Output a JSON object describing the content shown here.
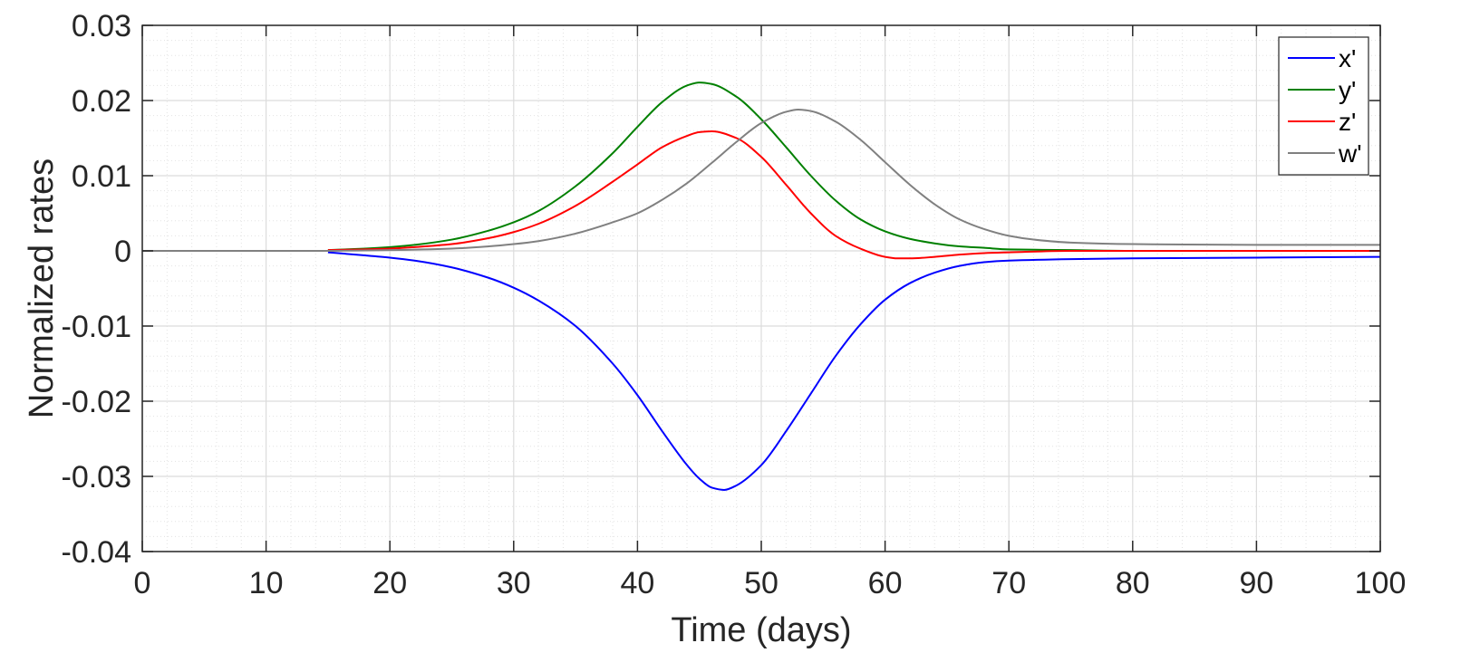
{
  "chart_data": {
    "type": "line",
    "xlabel": "Time (days)",
    "ylabel": "Normalized rates",
    "xlim": [
      0,
      100
    ],
    "ylim": [
      -0.04,
      0.03
    ],
    "x_ticks": [
      0,
      10,
      20,
      30,
      40,
      50,
      60,
      70,
      80,
      90,
      100
    ],
    "x_tick_labels": [
      "0",
      "10",
      "20",
      "30",
      "40",
      "50",
      "60",
      "70",
      "80",
      "90",
      "100"
    ],
    "y_ticks": [
      -0.04,
      -0.03,
      -0.02,
      -0.01,
      0,
      0.01,
      0.02,
      0.03
    ],
    "y_tick_labels": [
      "-0.04",
      "-0.03",
      "-0.02",
      "-0.01",
      "0",
      "0.01",
      "0.02",
      "0.03"
    ],
    "grid": true,
    "minor_grid": true,
    "legend_position": "top-right",
    "series": [
      {
        "name": "x'",
        "color": "#0000ff",
        "points": [
          [
            15,
            -0.0002
          ],
          [
            18,
            -0.0006
          ],
          [
            20,
            -0.0009
          ],
          [
            22,
            -0.0013
          ],
          [
            25,
            -0.0022
          ],
          [
            28,
            -0.0036
          ],
          [
            30,
            -0.0049
          ],
          [
            32,
            -0.0066
          ],
          [
            35,
            -0.01
          ],
          [
            38,
            -0.015
          ],
          [
            40,
            -0.0192
          ],
          [
            42,
            -0.024
          ],
          [
            44,
            -0.0285
          ],
          [
            45,
            -0.0303
          ],
          [
            46,
            -0.0315
          ],
          [
            47,
            -0.0318
          ],
          [
            48,
            -0.0312
          ],
          [
            50,
            -0.0285
          ],
          [
            52,
            -0.024
          ],
          [
            54,
            -0.019
          ],
          [
            56,
            -0.014
          ],
          [
            58,
            -0.0098
          ],
          [
            60,
            -0.0065
          ],
          [
            62,
            -0.0043
          ],
          [
            64,
            -0.0029
          ],
          [
            66,
            -0.002
          ],
          [
            68,
            -0.0015
          ],
          [
            70,
            -0.0013
          ],
          [
            75,
            -0.0011
          ],
          [
            80,
            -0.001
          ],
          [
            90,
            -0.0009
          ],
          [
            100,
            -0.0008
          ]
        ]
      },
      {
        "name": "y'",
        "color": "#008000",
        "points": [
          [
            15,
            0.0001
          ],
          [
            18,
            0.0003
          ],
          [
            20,
            0.0005
          ],
          [
            22,
            0.0008
          ],
          [
            25,
            0.0015
          ],
          [
            28,
            0.0027
          ],
          [
            30,
            0.0038
          ],
          [
            32,
            0.0053
          ],
          [
            35,
            0.0086
          ],
          [
            38,
            0.013
          ],
          [
            40,
            0.0165
          ],
          [
            42,
            0.0198
          ],
          [
            44,
            0.022
          ],
          [
            45,
            0.0224
          ],
          [
            46,
            0.0222
          ],
          [
            48,
            0.0205
          ],
          [
            50,
            0.0175
          ],
          [
            52,
            0.0138
          ],
          [
            54,
            0.01
          ],
          [
            56,
            0.0067
          ],
          [
            58,
            0.0042
          ],
          [
            60,
            0.0026
          ],
          [
            62,
            0.0016
          ],
          [
            64,
            0.001
          ],
          [
            66,
            0.0006
          ],
          [
            68,
            0.0004
          ],
          [
            70,
            0.0002
          ],
          [
            75,
            0.0001
          ],
          [
            80,
            0.0
          ],
          [
            100,
            0.0
          ]
        ]
      },
      {
        "name": "z'",
        "color": "#ff0000",
        "points": [
          [
            15,
            0.0001
          ],
          [
            18,
            0.0002
          ],
          [
            20,
            0.0003
          ],
          [
            22,
            0.0005
          ],
          [
            25,
            0.0009
          ],
          [
            28,
            0.0017
          ],
          [
            30,
            0.0025
          ],
          [
            32,
            0.0036
          ],
          [
            35,
            0.006
          ],
          [
            38,
            0.0092
          ],
          [
            40,
            0.0115
          ],
          [
            42,
            0.0138
          ],
          [
            44,
            0.0153
          ],
          [
            45,
            0.0158
          ],
          [
            46,
            0.0159
          ],
          [
            48,
            0.015
          ],
          [
            50,
            0.0125
          ],
          [
            52,
            0.0088
          ],
          [
            54,
            0.005
          ],
          [
            56,
            0.002
          ],
          [
            58,
            0.0003
          ],
          [
            60,
            -0.0008
          ],
          [
            61,
            -0.001
          ],
          [
            62,
            -0.001
          ],
          [
            64,
            -0.0008
          ],
          [
            66,
            -0.0005
          ],
          [
            68,
            -0.0003
          ],
          [
            70,
            -0.0002
          ],
          [
            75,
            0.0
          ],
          [
            100,
            0.0
          ]
        ]
      },
      {
        "name": "w'",
        "color": "#808080",
        "points": [
          [
            15,
            0.0
          ],
          [
            20,
            0.0001
          ],
          [
            25,
            0.0003
          ],
          [
            28,
            0.0006
          ],
          [
            30,
            0.0009
          ],
          [
            32,
            0.0013
          ],
          [
            35,
            0.0023
          ],
          [
            38,
            0.0038
          ],
          [
            40,
            0.005
          ],
          [
            42,
            0.0068
          ],
          [
            44,
            0.009
          ],
          [
            46,
            0.0117
          ],
          [
            48,
            0.0145
          ],
          [
            50,
            0.017
          ],
          [
            52,
            0.0185
          ],
          [
            53,
            0.0188
          ],
          [
            54,
            0.0186
          ],
          [
            56,
            0.0172
          ],
          [
            58,
            0.0148
          ],
          [
            60,
            0.0118
          ],
          [
            62,
            0.0088
          ],
          [
            64,
            0.0062
          ],
          [
            66,
            0.0042
          ],
          [
            68,
            0.0029
          ],
          [
            70,
            0.002
          ],
          [
            72,
            0.0015
          ],
          [
            75,
            0.0011
          ],
          [
            80,
            0.0009
          ],
          [
            90,
            0.0008
          ],
          [
            100,
            0.0008
          ]
        ]
      }
    ]
  }
}
